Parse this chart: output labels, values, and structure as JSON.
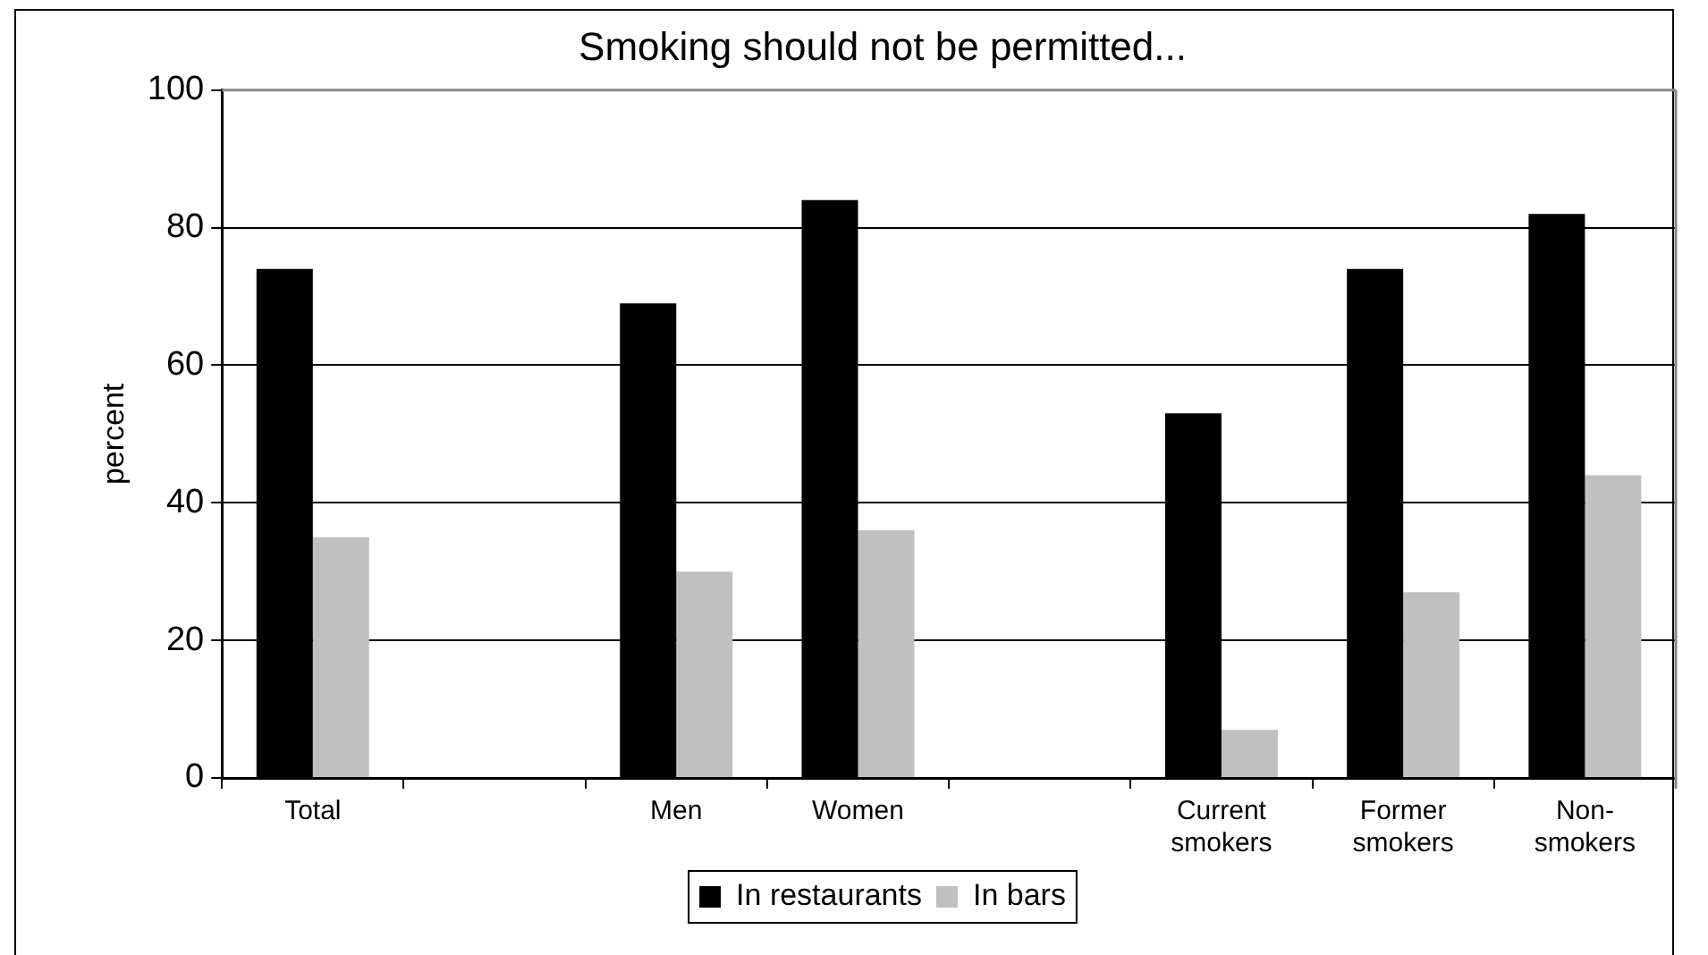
{
  "chart_data": {
    "type": "bar",
    "title": "Smoking should not be permitted...",
    "ylabel": "percent",
    "categories": [
      "Total",
      null,
      "Men",
      "Women",
      null,
      "Current smokers",
      "Former smokers",
      "Non-smokers"
    ],
    "series": [
      {
        "name": "In restaurants",
        "color": "#000000",
        "values": [
          74,
          null,
          69,
          84,
          null,
          53,
          74,
          82
        ]
      },
      {
        "name": "In bars",
        "color": "#c0c0c0",
        "values": [
          35,
          null,
          30,
          36,
          null,
          7,
          27,
          44
        ]
      }
    ],
    "ylim": [
      0,
      100
    ],
    "yticks": [
      0,
      20,
      40,
      60,
      80,
      100
    ],
    "grid": "y",
    "legend": "bottom"
  }
}
